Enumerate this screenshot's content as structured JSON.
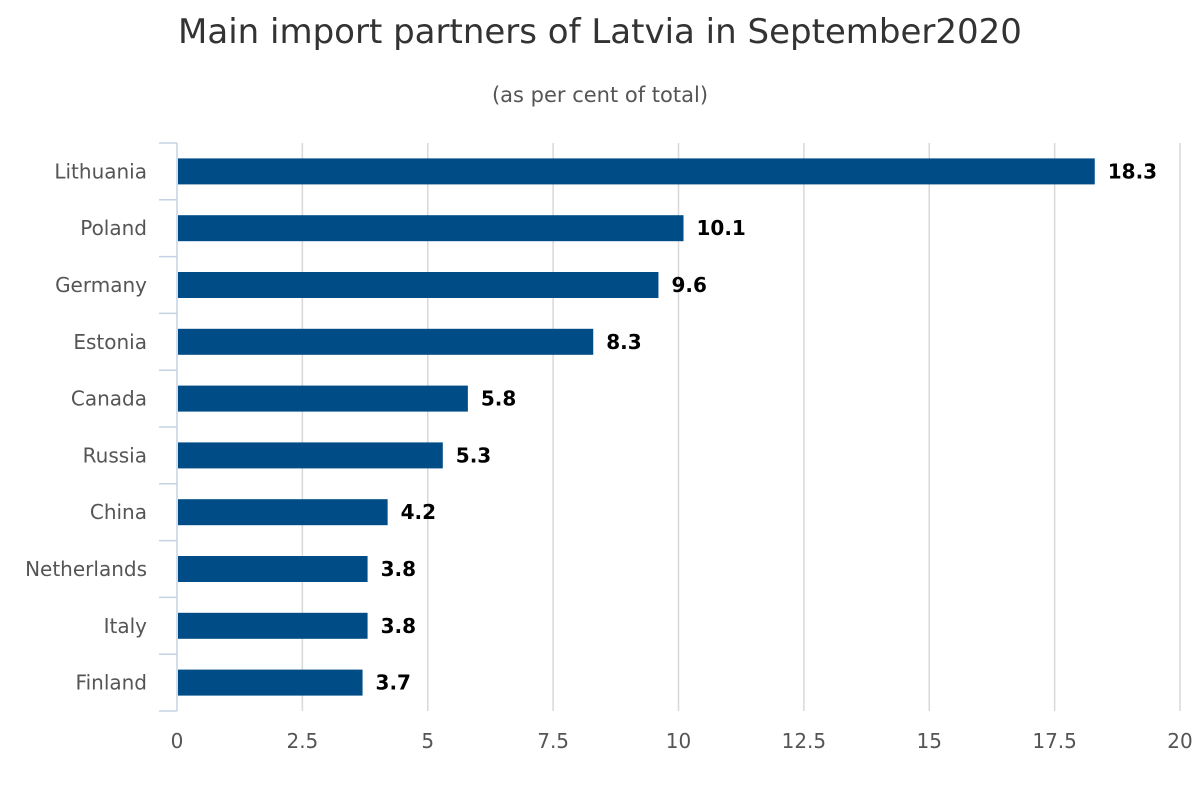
{
  "chart_data": {
    "type": "bar",
    "orientation": "horizontal",
    "title": "Main import partners of Latvia in September2020",
    "subtitle": "(as per cent of total)",
    "xlabel": "",
    "ylabel": "",
    "categories": [
      "Lithuania",
      "Poland",
      "Germany",
      "Estonia",
      "Canada",
      "Russia",
      "China",
      "Netherlands",
      "Italy",
      "Finland"
    ],
    "values": [
      18.3,
      10.1,
      9.6,
      8.3,
      5.8,
      5.3,
      4.2,
      3.8,
      3.8,
      3.7
    ],
    "data_labels": [
      "18.3",
      "10.1",
      "9.6",
      "8.3",
      "5.8",
      "5.3",
      "4.2",
      "3.8",
      "3.8",
      "3.7"
    ],
    "xlim": [
      0,
      20
    ],
    "x_ticks": [
      0,
      2.5,
      5,
      7.5,
      10,
      12.5,
      15,
      17.5,
      20
    ],
    "x_tick_labels": [
      "0",
      "2.5",
      "5",
      "7.5",
      "10",
      "12.5",
      "15",
      "17.5",
      "20"
    ],
    "grid": true,
    "legend": "none",
    "colors": {
      "bar": "#004c87",
      "grid": "#d8d8d8",
      "axis": "#c5d2e4",
      "title": "#333333",
      "text": "#555555",
      "data_label": "#000000"
    }
  }
}
